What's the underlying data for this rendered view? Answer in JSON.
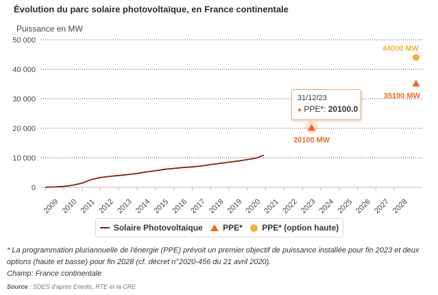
{
  "chart_data": {
    "type": "line",
    "title": "Évolution du parc solaire photovoltaïque, en France continentale",
    "ylabel": "Puissance en MW",
    "xlabel": "",
    "ylim": [
      0,
      50000
    ],
    "yticks": [
      0,
      10000,
      20000,
      30000,
      40000,
      50000
    ],
    "ytick_labels": [
      "0",
      "10 000",
      "20 000",
      "30 000",
      "40 000",
      "50 000"
    ],
    "xticks": [
      "2009",
      "2010",
      "2011",
      "2012",
      "2013",
      "2014",
      "2015",
      "2016",
      "2017",
      "2018",
      "2019",
      "2020",
      "2021",
      "2022",
      "2023",
      "2024",
      "2025",
      "2026",
      "2027",
      "2028"
    ],
    "xlim": [
      2008.5,
      2029
    ],
    "grid": true,
    "series": [
      {
        "name": "Solaire Photovoltaïque",
        "kind": "line",
        "color": "#8b1a10",
        "x": [
          2008.5,
          2009.0,
          2009.5,
          2010.0,
          2010.5,
          2011.0,
          2011.5,
          2012.0,
          2012.5,
          2013.0,
          2013.5,
          2014.0,
          2014.5,
          2015.0,
          2015.5,
          2016.0,
          2016.5,
          2017.0,
          2017.5,
          2018.0,
          2018.5,
          2019.0,
          2019.5,
          2020.0,
          2020.4
        ],
        "values": [
          50,
          120,
          300,
          700,
          1400,
          2600,
          3300,
          3700,
          4000,
          4300,
          4700,
          5200,
          5600,
          6100,
          6400,
          6700,
          6900,
          7200,
          7700,
          8100,
          8500,
          8900,
          9400,
          9900,
          10900
        ]
      },
      {
        "name": "PPE*",
        "kind": "triangle",
        "color": "#ee6a1c",
        "x": [
          2023.0,
          2029.0
        ],
        "values": [
          20100,
          35100
        ],
        "labels": [
          "20100 MW",
          "35100 MW"
        ]
      },
      {
        "name": "PPE* (option haute)",
        "kind": "circle",
        "color": "#f6b13c",
        "x": [
          2029.0
        ],
        "values": [
          44000
        ],
        "labels": [
          "44000 MW"
        ]
      }
    ],
    "legend": "bottom-center"
  },
  "tooltip": {
    "date": "31/12/23",
    "series_label": "PPE*:",
    "value": "20100.0"
  },
  "notes": {
    "footnote": "* La programmation pluriannuelle de l'énergie (PPE) prévoit un premier objectif de puissance installée pour fin 2023 et deux options (haute et basse) pour fin 2028 (cf. décret n°2020-456 du 21 avril 2020).",
    "champ": "Champ: France continentale",
    "source_label": "Source",
    "source_text": " : SDES d'après Enedis, RTE et la CRE"
  }
}
